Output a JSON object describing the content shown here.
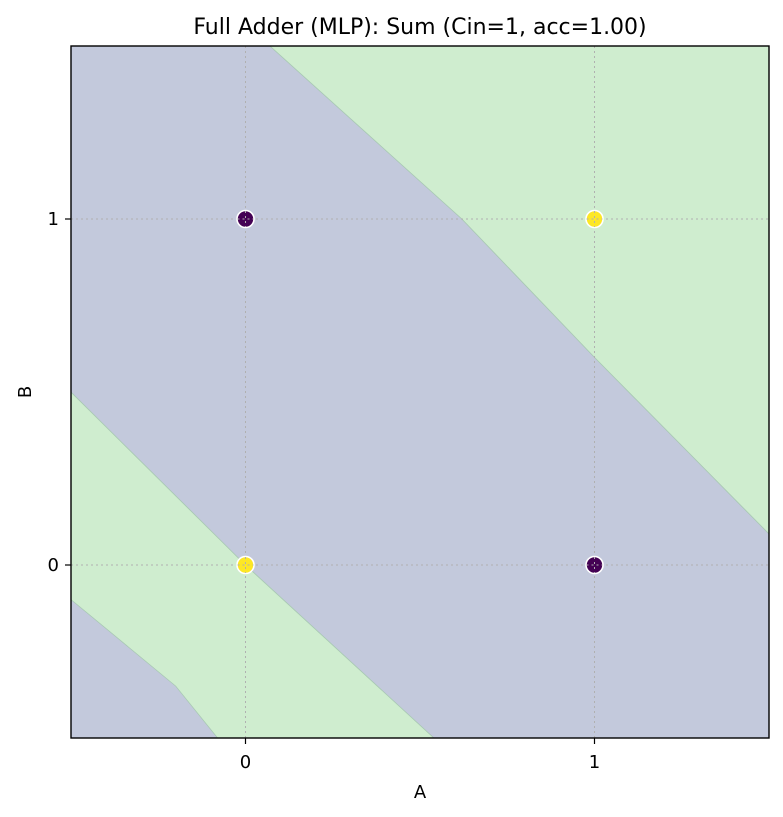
{
  "chart_data": {
    "type": "scatter",
    "title": "Full Adder (MLP): Sum (Cin=1, acc=1.00)",
    "xlabel": "A",
    "ylabel": "B",
    "xlim": [
      -0.5,
      1.5
    ],
    "ylim": [
      -0.5,
      1.5
    ],
    "xticks": [
      0,
      1
    ],
    "yticks": [
      0,
      1
    ],
    "x_tick_labels": [
      "0",
      "1"
    ],
    "y_tick_labels": [
      "0",
      "1"
    ],
    "grid": true,
    "points": [
      {
        "A": 0,
        "B": 0,
        "sum": 1
      },
      {
        "A": 1,
        "B": 0,
        "sum": 0
      },
      {
        "A": 0,
        "B": 1,
        "sum": 0
      },
      {
        "A": 1,
        "B": 1,
        "sum": 1
      }
    ],
    "decision_regions": [
      {
        "class": 1,
        "polygon": [
          [
            -0.5,
            0.5
          ],
          [
            0.0,
            0.0
          ],
          [
            0.54,
            -0.5
          ],
          [
            -0.5,
            -0.5
          ]
        ]
      },
      {
        "class": 0,
        "polygon": [
          [
            -0.5,
            1.0
          ],
          [
            -0.5,
            0.5
          ],
          [
            0.0,
            0.0
          ],
          [
            0.54,
            -0.5
          ],
          [
            1.5,
            -0.5
          ],
          [
            1.5,
            0.09
          ],
          [
            1.0,
            0.6
          ],
          [
            0.62,
            1.0
          ],
          [
            0.07,
            1.5
          ],
          [
            -0.5,
            1.5
          ]
        ]
      },
      {
        "class": 1,
        "polygon": [
          [
            0.07,
            1.5
          ],
          [
            0.62,
            1.0
          ],
          [
            1.0,
            0.6
          ],
          [
            1.5,
            0.09
          ],
          [
            1.5,
            1.5
          ]
        ]
      },
      {
        "class": 0,
        "polygon": [
          [
            -0.5,
            -0.5
          ],
          [
            -0.5,
            -0.1
          ],
          [
            -0.38,
            -0.2
          ],
          [
            -0.2,
            -0.35
          ],
          [
            -0.08,
            -0.5
          ]
        ]
      }
    ],
    "class_colors": {
      "0": "#c3c9dc",
      "1": "#cfedcf"
    },
    "point_colors": {
      "0": "#440154",
      "1": "#fde725"
    }
  }
}
